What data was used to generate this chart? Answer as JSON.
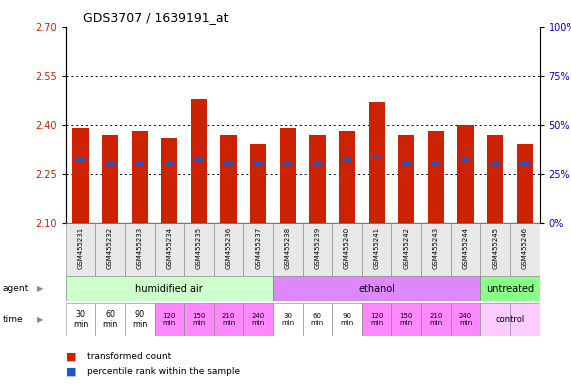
{
  "title": "GDS3707 / 1639191_at",
  "samples": [
    "GSM455231",
    "GSM455232",
    "GSM455233",
    "GSM455234",
    "GSM455235",
    "GSM455236",
    "GSM455237",
    "GSM455238",
    "GSM455239",
    "GSM455240",
    "GSM455241",
    "GSM455242",
    "GSM455243",
    "GSM455244",
    "GSM455245",
    "GSM455246"
  ],
  "transformed_count": [
    2.39,
    2.37,
    2.38,
    2.36,
    2.48,
    2.37,
    2.34,
    2.39,
    2.37,
    2.38,
    2.47,
    2.37,
    2.38,
    2.4,
    2.37,
    2.34
  ],
  "percentile_rank": [
    32,
    30,
    30,
    30,
    32,
    30,
    30,
    30,
    30,
    32,
    34,
    30,
    30,
    32,
    30,
    30
  ],
  "y_min": 2.1,
  "y_max": 2.7,
  "y_ticks": [
    2.1,
    2.25,
    2.4,
    2.55,
    2.7
  ],
  "right_y_ticks_pct": [
    0,
    25,
    50,
    75,
    100
  ],
  "right_y_labels": [
    "0%",
    "25%",
    "50%",
    "75%",
    "100%"
  ],
  "bar_color": "#cc2200",
  "blue_color": "#2255cc",
  "agent_groups": [
    {
      "label": "humidified air",
      "start": 0,
      "end": 7,
      "color": "#ccffcc"
    },
    {
      "label": "ethanol",
      "start": 7,
      "end": 14,
      "color": "#dd88ff"
    },
    {
      "label": "untreated",
      "start": 14,
      "end": 16,
      "color": "#88ff88"
    }
  ],
  "time_labels_14": [
    "30\nmin",
    "60\nmin",
    "90\nmin",
    "120\nmin",
    "150\nmin",
    "210\nmin",
    "240\nmin",
    "30\nmin",
    "60\nmin",
    "90\nmin",
    "120\nmin",
    "150\nmin",
    "210\nmin",
    "240\nmin"
  ],
  "time_colors": [
    "#ffffff",
    "#ffffff",
    "#ffffff",
    "#ff88ff",
    "#ff88ff",
    "#ff88ff",
    "#ff88ff",
    "#ffffff",
    "#ffffff",
    "#ffffff",
    "#ff88ff",
    "#ff88ff",
    "#ff88ff",
    "#ff88ff",
    "#ffccff",
    "#ffccff"
  ],
  "tick_label_color_left": "#cc2200",
  "tick_label_color_right": "#0000cc",
  "dotted_lines": [
    2.25,
    2.4,
    2.55
  ]
}
